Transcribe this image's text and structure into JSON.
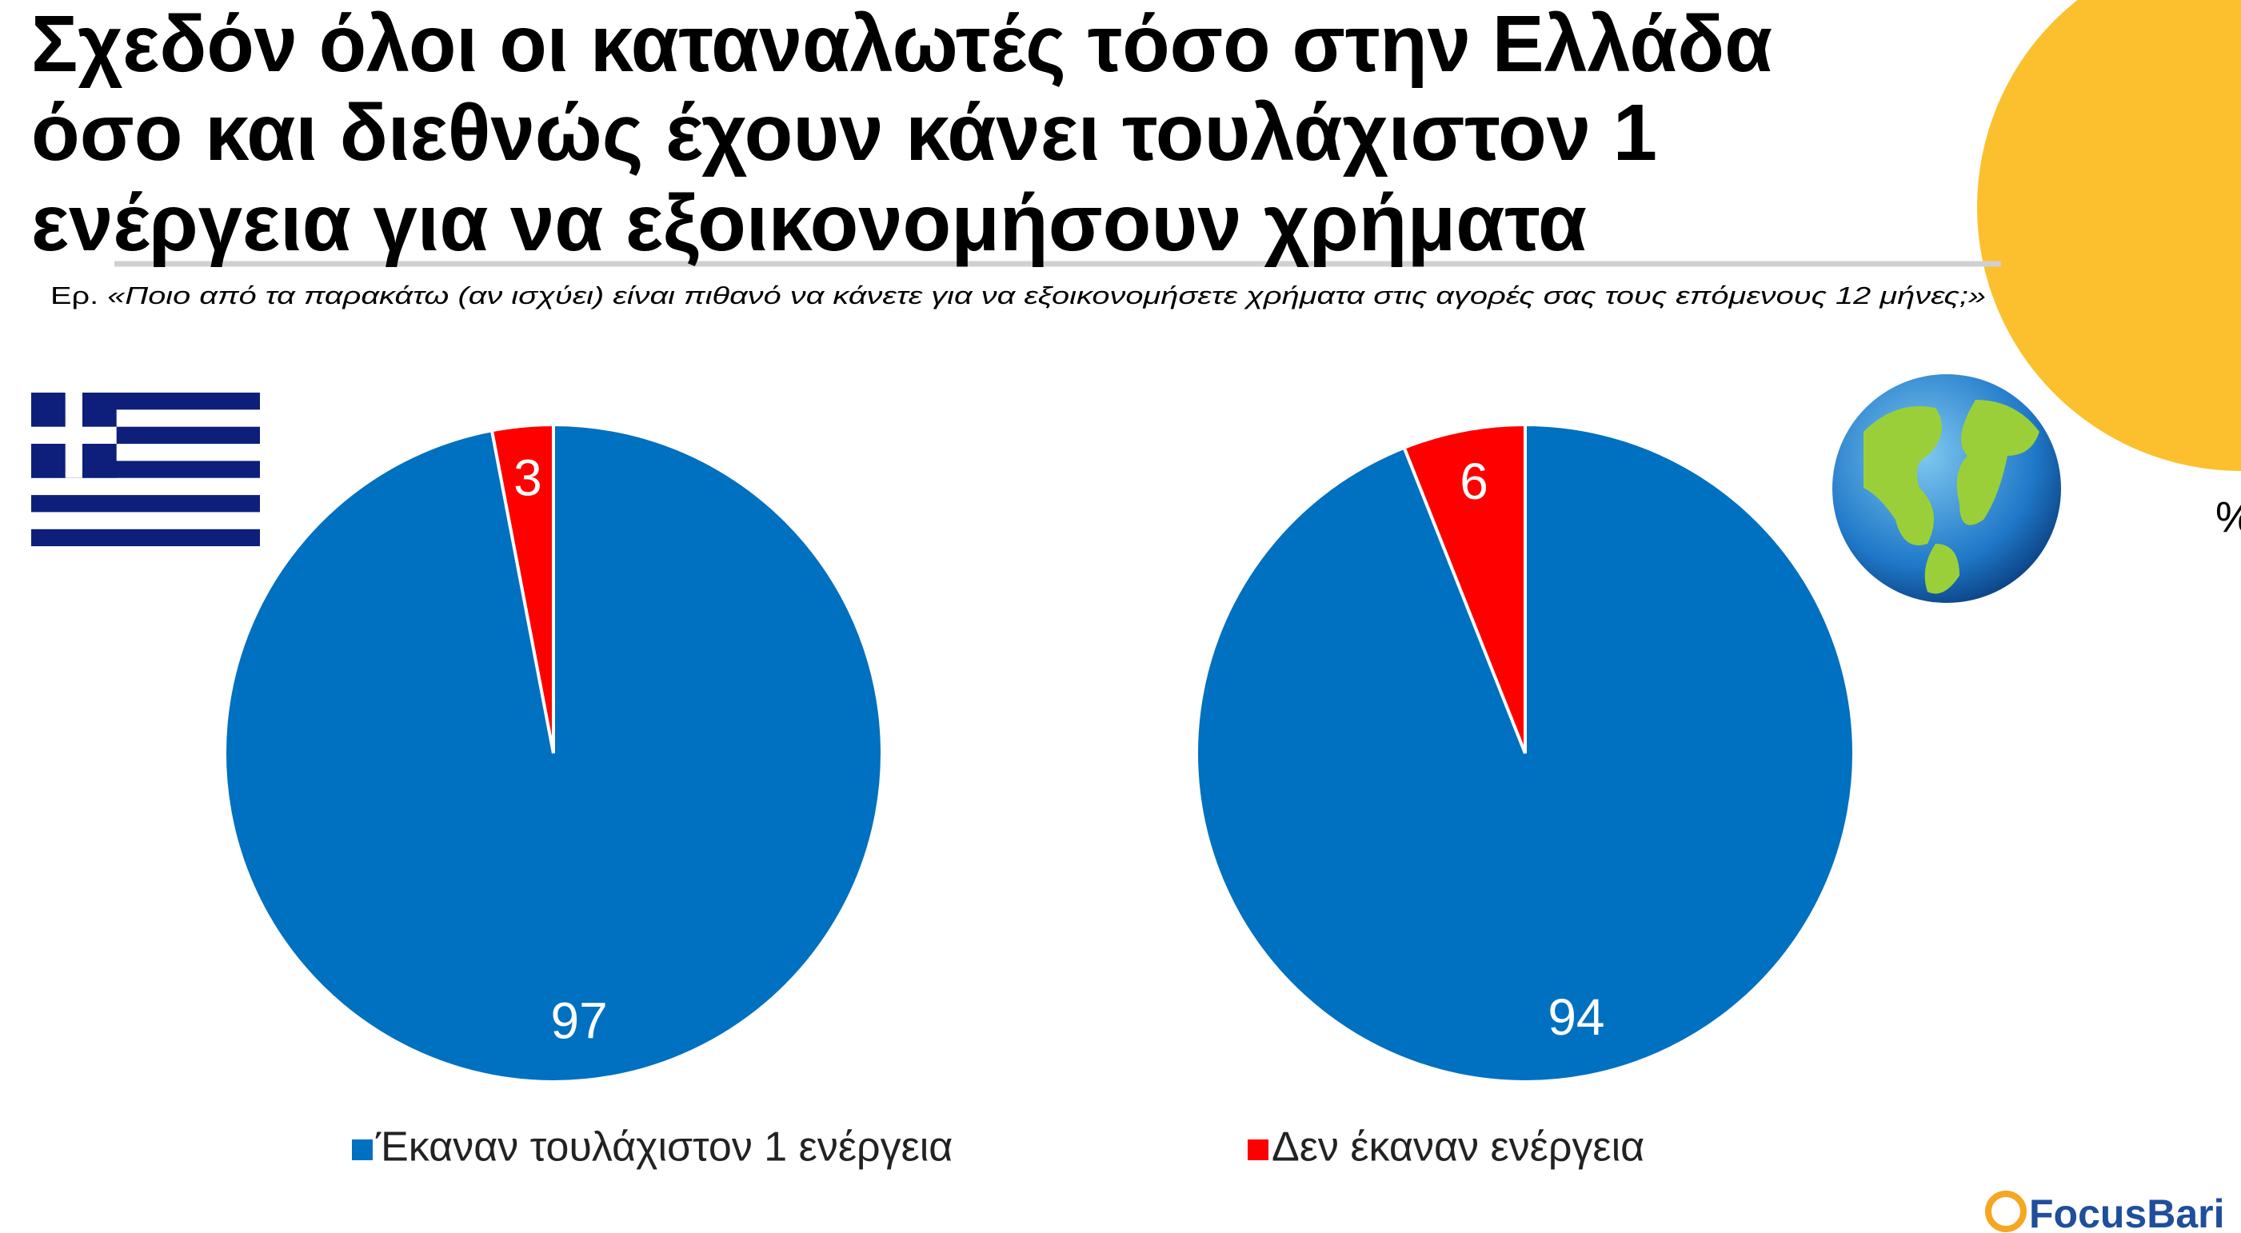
{
  "header": {
    "title": [
      "Σχεδόν όλοι οι καταναλωτές τόσο στην Ελλάδα",
      "όσο και διεθνώς έχουν κάνει τουλάχιστον 1",
      "ενέργεια για να εξοικονομήσουν χρήματα"
    ],
    "question_prefix": "Ερ.",
    "question": "«Ποιο από τα παρακάτω (αν ισχύει) είναι πιθανό να κάνετε για να εξοικονομήσετε χρήματα στις αγορές σας τους επόμενους 12 μήνες;»",
    "unit": "%"
  },
  "legend": {
    "labels": [
      "Έκαναν τουλάχιστον 1 ενέργεια",
      "Δεν έκαναν ενέργεια"
    ],
    "colors": [
      "#0070c0",
      "#ff0000"
    ]
  },
  "chart_data": [
    {
      "type": "pie",
      "values": [
        97,
        3
      ]
    },
    {
      "type": "pie",
      "values": [
        94,
        6
      ]
    }
  ],
  "logo": "FocusBari"
}
